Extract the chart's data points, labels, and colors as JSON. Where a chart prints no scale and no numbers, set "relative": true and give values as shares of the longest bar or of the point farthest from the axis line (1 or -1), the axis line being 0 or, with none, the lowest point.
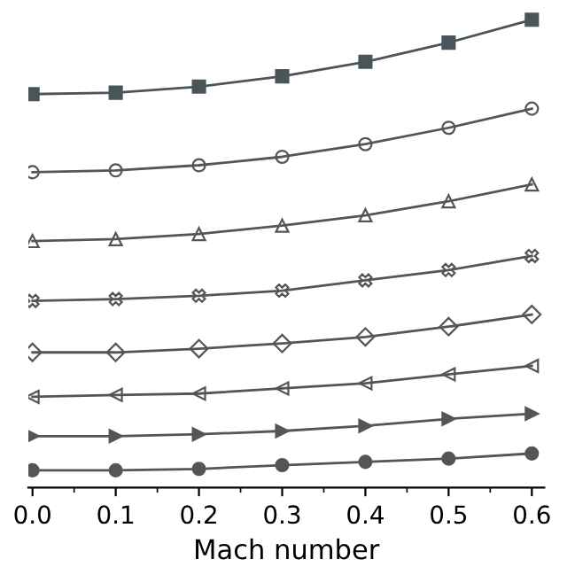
{
  "chart_data": {
    "type": "line",
    "xlabel": "Mach number",
    "relative": true,
    "x": [
      0.0,
      0.1,
      0.2,
      0.3,
      0.4,
      0.5,
      0.6
    ],
    "xlim": [
      -0.005,
      0.615
    ],
    "xticks": [
      {
        "value": 0.0,
        "label": "0.0"
      },
      0.1,
      0.2,
      0.3,
      0.4,
      0.5,
      0.6
    ],
    "grid": false,
    "legend": false,
    "line_style": "solid",
    "series": [
      {
        "color": "#4a5559",
        "marker": "square",
        "values": [
          0.841,
          0.844,
          0.857,
          0.879,
          0.91,
          0.951,
          1.0
        ]
      },
      {
        "color": "#555555",
        "marker": "circle",
        "values": [
          0.674,
          0.678,
          0.689,
          0.707,
          0.734,
          0.769,
          0.81
        ]
      },
      {
        "color": "#555555",
        "marker": "triangle",
        "values": [
          0.527,
          0.531,
          0.542,
          0.56,
          0.582,
          0.612,
          0.648
        ]
      },
      {
        "color": "#555555",
        "marker": "cross",
        "values": [
          0.399,
          0.403,
          0.41,
          0.421,
          0.443,
          0.465,
          0.495
        ]
      },
      {
        "color": "#555555",
        "marker": "diamond",
        "values": [
          0.289,
          0.289,
          0.297,
          0.308,
          0.322,
          0.344,
          0.37
        ]
      },
      {
        "color": "#555555",
        "marker": "triangle",
        "values": [
          0.194,
          0.198,
          0.201,
          0.212,
          0.223,
          0.242,
          0.26
        ]
      },
      {
        "color": "#555555",
        "marker": "triangle",
        "values": [
          0.11,
          0.11,
          0.114,
          0.121,
          0.132,
          0.147,
          0.158
        ]
      },
      {
        "color": "#555555",
        "marker": "circle",
        "values": [
          0.037,
          0.037,
          0.04,
          0.048,
          0.055,
          0.062,
          0.073
        ]
      }
    ]
  }
}
